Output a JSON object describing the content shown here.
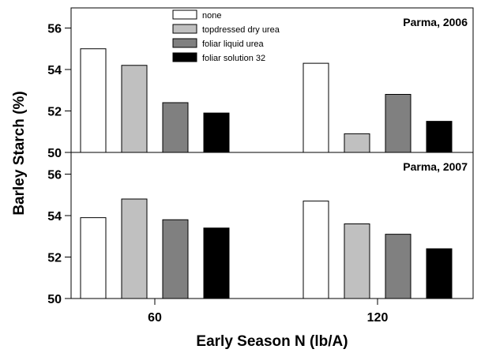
{
  "chart_data": {
    "type": "bar",
    "xlabel": "Early Season N (lb/A)",
    "ylabel": "Barley Starch (%)",
    "categories": [
      "60",
      "120"
    ],
    "legend": [
      {
        "name": "none",
        "color": "#ffffff"
      },
      {
        "name": "topdressed dry urea",
        "color": "#c0c0c0"
      },
      {
        "name": "foliar liquid urea",
        "color": "#808080"
      },
      {
        "name": "foliar solution 32",
        "color": "#000000"
      }
    ],
    "panels": [
      {
        "title": "Parma, 2006",
        "ylim": [
          50,
          57
        ],
        "yticks": [
          "50",
          "52",
          "54",
          "56"
        ],
        "series": [
          {
            "name": "none",
            "values": [
              55.0,
              54.3
            ]
          },
          {
            "name": "topdressed dry urea",
            "values": [
              54.2,
              50.9
            ]
          },
          {
            "name": "foliar liquid urea",
            "values": [
              52.4,
              52.8
            ]
          },
          {
            "name": "foliar solution 32",
            "values": [
              51.9,
              51.5
            ]
          }
        ]
      },
      {
        "title": "Parma, 2007",
        "ylim": [
          50,
          57
        ],
        "yticks": [
          "50",
          "52",
          "54",
          "56"
        ],
        "series": [
          {
            "name": "none",
            "values": [
              53.9,
              54.7
            ]
          },
          {
            "name": "topdressed dry urea",
            "values": [
              54.8,
              53.6
            ]
          },
          {
            "name": "foliar liquid urea",
            "values": [
              53.8,
              53.1
            ]
          },
          {
            "name": "foliar solution 32",
            "values": [
              53.4,
              52.4
            ]
          }
        ]
      }
    ]
  }
}
